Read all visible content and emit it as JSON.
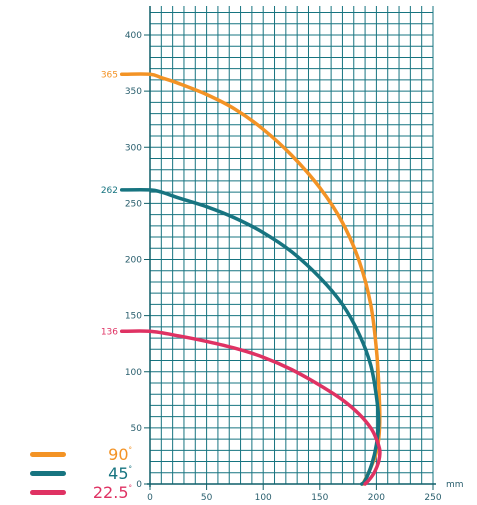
{
  "chart_data": {
    "type": "line",
    "xlabel": "mm",
    "ylabel": "",
    "xlim": [
      0,
      250
    ],
    "ylim": [
      0,
      420
    ],
    "x_ticks": [
      0,
      50,
      100,
      150,
      200,
      250
    ],
    "y_ticks": [
      0,
      50,
      100,
      150,
      200,
      250,
      300,
      350,
      400
    ],
    "grid": true,
    "legend_position": "bottom-left",
    "series": [
      {
        "name": "90°",
        "label": "90",
        "color": "#f39325",
        "start_label": "365",
        "points": [
          [
            -25,
            365
          ],
          [
            0,
            365
          ],
          [
            10,
            362
          ],
          [
            25,
            357
          ],
          [
            50,
            347
          ],
          [
            75,
            334
          ],
          [
            100,
            316
          ],
          [
            125,
            293
          ],
          [
            150,
            264
          ],
          [
            170,
            233
          ],
          [
            185,
            198
          ],
          [
            195,
            160
          ],
          [
            200,
            120
          ],
          [
            202,
            90
          ],
          [
            203,
            60
          ],
          [
            202,
            40
          ],
          [
            199,
            25
          ],
          [
            193,
            10
          ],
          [
            188,
            0
          ]
        ]
      },
      {
        "name": "45°",
        "label": "45",
        "color": "#177480",
        "start_label": "262",
        "points": [
          [
            -25,
            262
          ],
          [
            0,
            262
          ],
          [
            10,
            260
          ],
          [
            25,
            255
          ],
          [
            50,
            247
          ],
          [
            75,
            237
          ],
          [
            100,
            224
          ],
          [
            125,
            207
          ],
          [
            150,
            184
          ],
          [
            170,
            160
          ],
          [
            185,
            133
          ],
          [
            195,
            106
          ],
          [
            200,
            78
          ],
          [
            202,
            55
          ],
          [
            200,
            35
          ],
          [
            196,
            18
          ],
          [
            190,
            3
          ],
          [
            187,
            0
          ]
        ]
      },
      {
        "name": "22.5°",
        "label": "22.5",
        "color": "#df3263",
        "start_label": "136",
        "points": [
          [
            -25,
            136
          ],
          [
            0,
            136
          ],
          [
            25,
            132
          ],
          [
            50,
            127
          ],
          [
            75,
            121
          ],
          [
            100,
            113
          ],
          [
            125,
            102
          ],
          [
            150,
            88
          ],
          [
            170,
            75
          ],
          [
            185,
            62
          ],
          [
            195,
            50
          ],
          [
            200,
            40
          ],
          [
            203,
            30
          ],
          [
            202,
            20
          ],
          [
            198,
            10
          ],
          [
            193,
            3
          ],
          [
            190,
            0
          ]
        ]
      }
    ]
  },
  "legend": {
    "degree_symbol": "°",
    "items": [
      {
        "label": "90",
        "color": "#f39325"
      },
      {
        "label": "45",
        "color": "#177480"
      },
      {
        "label": "22.5",
        "color": "#df3263"
      }
    ]
  }
}
